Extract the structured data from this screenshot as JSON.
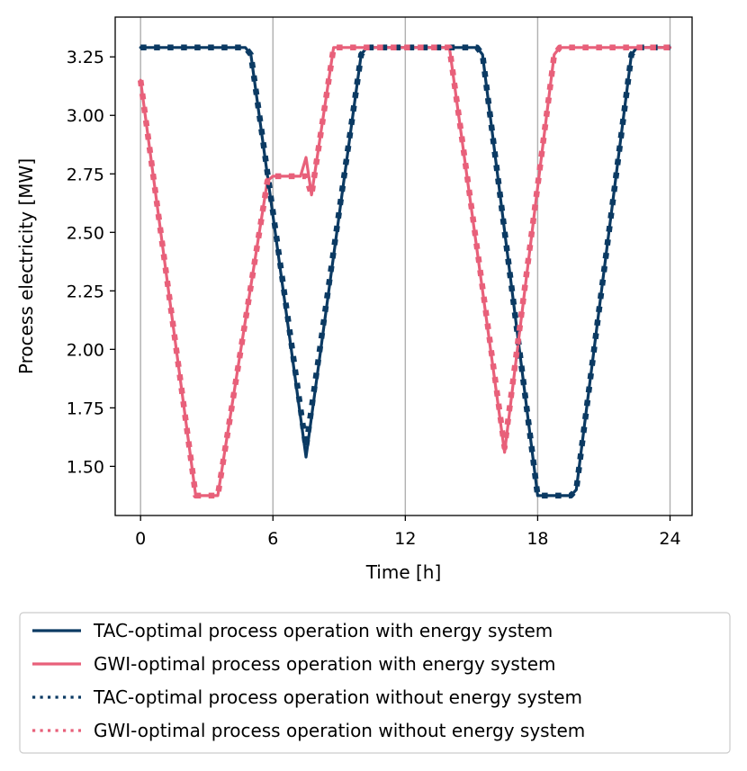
{
  "chart_data": {
    "type": "line",
    "xlabel": "Time [h]",
    "ylabel": "Process electricity [MW]",
    "xlim": [
      -1.15,
      25.0
    ],
    "ylim": [
      1.29,
      3.42
    ],
    "xticks": [
      0,
      6,
      12,
      18,
      24
    ],
    "xtick_labels": [
      "0",
      "6",
      "12",
      "18",
      "24"
    ],
    "yticks": [
      1.5,
      1.75,
      2.0,
      2.25,
      2.5,
      2.75,
      3.0,
      3.25
    ],
    "ytick_labels": [
      "1.50",
      "1.75",
      "2.00",
      "2.25",
      "2.50",
      "2.75",
      "3.00",
      "3.25"
    ],
    "grid": "vertical lines at x ticks",
    "legend_position": "below",
    "colors": {
      "tac": "#0b3a63",
      "gwi": "#e8607a",
      "grid": "#b0b0b0"
    },
    "series": [
      {
        "name": "TAC-optimal process operation with energy system",
        "style": "solid",
        "color": "#0b3a63",
        "x": [
          0,
          4.75,
          5.0,
          7.5,
          10.0,
          10.25,
          15.25,
          15.5,
          18.0,
          19.5,
          19.75,
          22.25,
          22.5,
          24
        ],
        "y": [
          3.29,
          3.29,
          3.26,
          1.54,
          3.26,
          3.29,
          3.29,
          3.26,
          1.375,
          1.375,
          1.4,
          3.26,
          3.29,
          3.29
        ]
      },
      {
        "name": "GWI-optimal process operation with energy system",
        "style": "solid",
        "color": "#e8607a",
        "x": [
          0,
          2.5,
          3.5,
          5.75,
          6.0,
          7.25,
          7.5,
          7.75,
          8.75,
          14.0,
          16.5,
          18.75,
          19.0,
          24
        ],
        "y": [
          3.15,
          1.375,
          1.375,
          2.72,
          2.74,
          2.74,
          2.82,
          2.66,
          3.29,
          3.29,
          1.56,
          3.26,
          3.29,
          3.29
        ]
      },
      {
        "name": "TAC-optimal process operation without energy system",
        "style": "dotted",
        "color": "#0b3a63",
        "x": [
          0,
          4.75,
          5.0,
          7.5,
          10.0,
          10.25,
          15.25,
          15.5,
          18.0,
          19.5,
          19.75,
          22.25,
          22.5,
          24
        ],
        "y": [
          3.29,
          3.29,
          3.26,
          1.58,
          3.26,
          3.29,
          3.29,
          3.26,
          1.375,
          1.375,
          1.4,
          3.26,
          3.29,
          3.29
        ]
      },
      {
        "name": "GWI-optimal process operation without energy system",
        "style": "dotted",
        "color": "#e8607a",
        "x": [
          0,
          2.5,
          3.5,
          5.75,
          6.0,
          7.25,
          7.5,
          7.75,
          8.75,
          14.0,
          16.5,
          18.75,
          19.0,
          24
        ],
        "y": [
          3.15,
          1.375,
          1.375,
          2.72,
          2.74,
          2.74,
          2.74,
          2.66,
          3.29,
          3.29,
          1.58,
          3.26,
          3.29,
          3.29
        ]
      }
    ]
  }
}
